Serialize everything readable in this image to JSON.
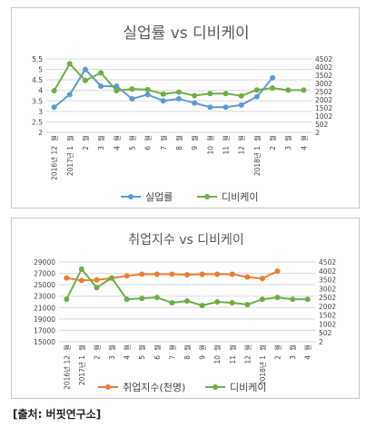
{
  "chart_data": [
    {
      "type": "line",
      "title": "실업률 vs 디비케이",
      "categories": [
        "2016년 12월",
        "2017년 1월",
        "2월",
        "3월",
        "4월",
        "5월",
        "6월",
        "7월",
        "8월",
        "9월",
        "10월",
        "11월",
        "12월",
        "2018년 1월",
        "2월",
        "3월",
        "4월"
      ],
      "x_tick_labels": [
        [
          "월",
          "2016년 12"
        ],
        [
          "월",
          "2017년 1"
        ],
        [
          "월",
          "2"
        ],
        [
          "월",
          "3"
        ],
        [
          "월",
          "4"
        ],
        [
          "월",
          "5"
        ],
        [
          "월",
          "6"
        ],
        [
          "월",
          "7"
        ],
        [
          "월",
          "8"
        ],
        [
          "월",
          "9"
        ],
        [
          "월",
          "10"
        ],
        [
          "월",
          "11"
        ],
        [
          "월",
          "12"
        ],
        [
          "월",
          "2018년 1"
        ],
        [
          "월",
          "2"
        ],
        [
          "월",
          "3"
        ],
        [
          "월",
          "4"
        ]
      ],
      "y_left": {
        "ylim": [
          2,
          5.5
        ],
        "ticks": [
          "2",
          "2.5",
          "3",
          "3.5",
          "4",
          "4.5",
          "5",
          "5.5"
        ]
      },
      "y_right": {
        "ylim": [
          2,
          4502
        ],
        "ticks": [
          "2",
          "502",
          "1002",
          "1502",
          "2002",
          "2502",
          "3002",
          "3502",
          "4002",
          "4502"
        ]
      },
      "grid": true,
      "legend_position": "bottom",
      "series": [
        {
          "name": "실업률",
          "axis": "left",
          "color": "#5b9bd5",
          "values": [
            3.2,
            3.8,
            5.0,
            4.2,
            4.2,
            3.6,
            3.8,
            3.5,
            3.6,
            3.4,
            3.2,
            3.2,
            3.3,
            3.7,
            4.6,
            null,
            null
          ]
        },
        {
          "name": "디비케이",
          "axis": "right",
          "color": "#70ad47",
          "values": [
            2550,
            4200,
            3180,
            3650,
            2560,
            2660,
            2620,
            2350,
            2470,
            2250,
            2380,
            2380,
            2240,
            2600,
            2720,
            2590,
            2590
          ]
        }
      ]
    },
    {
      "type": "line",
      "title": "취업지수 vs 디비케이",
      "categories": [
        "2016년 12월",
        "2017년 1월",
        "2월",
        "3월",
        "4월",
        "5월",
        "6월",
        "7월",
        "8월",
        "9월",
        "10월",
        "11월",
        "12월",
        "2018년 1월",
        "2월",
        "3월",
        "4월"
      ],
      "x_tick_labels": [
        [
          "월",
          "2016년 12"
        ],
        [
          "월",
          "2017년 1"
        ],
        [
          "월",
          "2"
        ],
        [
          "월",
          "3"
        ],
        [
          "월",
          "4"
        ],
        [
          "월",
          "5"
        ],
        [
          "월",
          "6"
        ],
        [
          "월",
          "7"
        ],
        [
          "월",
          "8"
        ],
        [
          "월",
          "9"
        ],
        [
          "월",
          "10"
        ],
        [
          "월",
          "11"
        ],
        [
          "월",
          "12"
        ],
        [
          "월",
          "2018년 1"
        ],
        [
          "월",
          "2"
        ],
        [
          "월",
          "3"
        ],
        [
          "월",
          "4"
        ]
      ],
      "y_left": {
        "ylim": [
          15000,
          29000
        ],
        "ticks": [
          "15000",
          "17000",
          "19000",
          "21000",
          "23000",
          "25000",
          "27000",
          "29000"
        ]
      },
      "y_right": {
        "ylim": [
          2,
          4502
        ],
        "ticks": [
          "2",
          "502",
          "1002",
          "1502",
          "2002",
          "2502",
          "3002",
          "3502",
          "4002",
          "4502"
        ]
      },
      "grid": true,
      "legend_position": "bottom",
      "series": [
        {
          "name": "취업지수(천명)",
          "axis": "left",
          "color": "#ed7d31",
          "values": [
            26200,
            25750,
            25850,
            26150,
            26550,
            26850,
            26850,
            26850,
            26750,
            26850,
            26850,
            26850,
            26350,
            26100,
            27400,
            null,
            null
          ]
        },
        {
          "name": "디비케이",
          "axis": "right",
          "color": "#70ad47",
          "values": [
            2400,
            4100,
            3050,
            3600,
            2400,
            2450,
            2500,
            2200,
            2300,
            2050,
            2250,
            2200,
            2100,
            2400,
            2500,
            2400,
            2400
          ]
        }
      ]
    }
  ],
  "source": "[출처: 버핏연구소]"
}
